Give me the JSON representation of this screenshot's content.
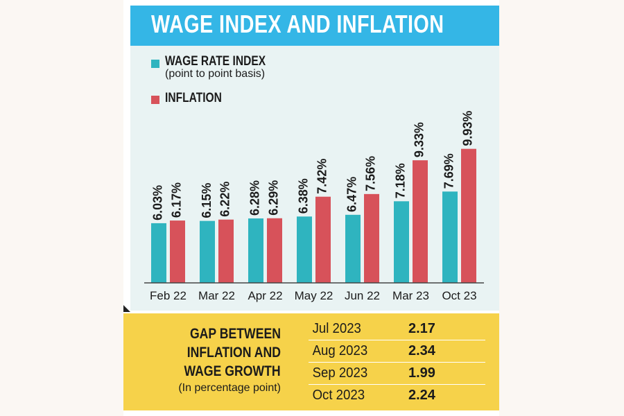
{
  "title": "WAGE INDEX AND INFLATION",
  "colors": {
    "wage": "#2fb4bf",
    "inflation": "#d7525a",
    "title_bg": "#34b6e6",
    "gap_bg": "#f6d24a"
  },
  "legend": {
    "wage_label": "WAGE RATE INDEX",
    "wage_sub": "(point to point basis)",
    "inflation_label": "INFLATION"
  },
  "chart_data": {
    "type": "bar",
    "title": "WAGE INDEX AND INFLATION",
    "categories": [
      "Feb 22",
      "Mar 22",
      "Apr 22",
      "May 22",
      "Jun 22",
      "Mar 23",
      "Oct 23"
    ],
    "series": [
      {
        "name": "WAGE RATE INDEX",
        "values": [
          6.03,
          6.15,
          6.28,
          6.38,
          6.47,
          7.18,
          7.69
        ]
      },
      {
        "name": "INFLATION",
        "values": [
          6.17,
          6.22,
          6.29,
          7.42,
          7.56,
          9.33,
          9.93
        ]
      }
    ],
    "value_labels": [
      [
        "6.03%",
        "6.15%",
        "6.28%",
        "6.38%",
        "6.47%",
        "7.18%",
        "7.69%"
      ],
      [
        "6.17%",
        "6.22%",
        "6.29%",
        "7.42%",
        "7.56%",
        "9.33%",
        "9.93%"
      ]
    ],
    "xlabel": "",
    "ylabel": "",
    "ylim": [
      0,
      12
    ],
    "grid": false
  },
  "gap": {
    "title_line1": "GAP BETWEEN",
    "title_line2": "INFLATION AND",
    "title_line3": "WAGE GROWTH",
    "subtitle": "(In percentage point)",
    "rows": [
      {
        "month": "Jul 2023",
        "value": "2.17"
      },
      {
        "month": "Aug 2023",
        "value": "2.34"
      },
      {
        "month": "Sep 2023",
        "value": "1.99"
      },
      {
        "month": "Oct 2023",
        "value": "2.24"
      }
    ]
  }
}
